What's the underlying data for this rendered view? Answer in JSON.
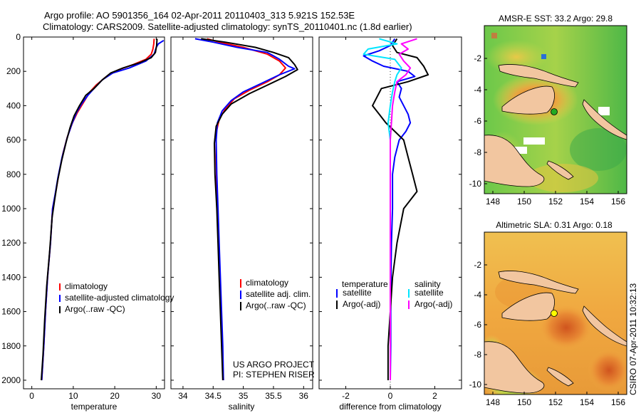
{
  "header": {
    "line1": "Argo profile: AO 5901356_164 02-Apr-2011 20110403_313 5.921S 152.53E",
    "line2": "Climatology: CARS2009. Satellite-adjusted climatology: synTS_20110401.nc (1.8d earlier)"
  },
  "colors": {
    "climatology": "#ff0000",
    "satellite": "#0000ff",
    "argo": "#000000",
    "salinity_satellite": "#00e5ff",
    "salinity_argo": "#ff00ff",
    "land": "#f2c6a0"
  },
  "chart_data": [
    {
      "type": "line",
      "name": "temperature-profile",
      "xlabel": "temperature",
      "ylabel": "",
      "xlim": [
        -2,
        32
      ],
      "ylim": [
        2050,
        0
      ],
      "xticks": [
        0,
        10,
        20,
        30
      ],
      "yticks": [
        0,
        200,
        400,
        600,
        800,
        1000,
        1200,
        1400,
        1600,
        1800,
        2000
      ],
      "series": [
        {
          "name": "climatology",
          "color": "#ff0000",
          "points": [
            [
              29.5,
              10
            ],
            [
              29.4,
              40
            ],
            [
              29.2,
              70
            ],
            [
              28.8,
              100
            ],
            [
              27.5,
              130
            ],
            [
              24.5,
              160
            ],
            [
              21.0,
              190
            ],
            [
              18.0,
              230
            ],
            [
              15.5,
              280
            ],
            [
              14.0,
              320
            ],
            [
              12.5,
              380
            ],
            [
              11.0,
              440
            ],
            [
              9.8,
              500
            ],
            [
              8.6,
              580
            ],
            [
              7.5,
              680
            ],
            [
              6.5,
              800
            ],
            [
              5.8,
              900
            ],
            [
              5.0,
              1000
            ],
            [
              4.5,
              1200
            ],
            [
              3.8,
              1400
            ],
            [
              3.3,
              1600
            ],
            [
              2.9,
              1800
            ],
            [
              2.4,
              2000
            ]
          ]
        },
        {
          "name": "satellite-adjusted climatology",
          "color": "#0000ff",
          "points": [
            [
              31.8,
              20
            ],
            [
              30.5,
              40
            ],
            [
              30.0,
              60
            ],
            [
              29.5,
              100
            ],
            [
              27.5,
              140
            ],
            [
              23.5,
              180
            ],
            [
              19.5,
              210
            ],
            [
              17.0,
              250
            ],
            [
              15.0,
              300
            ],
            [
              13.5,
              340
            ],
            [
              12.0,
              390
            ],
            [
              10.8,
              440
            ],
            [
              9.6,
              510
            ],
            [
              8.5,
              590
            ],
            [
              7.3,
              700
            ],
            [
              6.3,
              820
            ],
            [
              5.6,
              920
            ],
            [
              5.0,
              1000
            ],
            [
              4.5,
              1200
            ],
            [
              3.8,
              1400
            ],
            [
              3.3,
              1600
            ],
            [
              2.9,
              1800
            ],
            [
              2.4,
              2000
            ]
          ]
        },
        {
          "name": "Argo(..raw -QC)",
          "color": "#000000",
          "points": [
            [
              30.2,
              10
            ],
            [
              30.1,
              50
            ],
            [
              29.8,
              90
            ],
            [
              28.8,
              120
            ],
            [
              26.0,
              150
            ],
            [
              22.0,
              180
            ],
            [
              19.0,
              210
            ],
            [
              17.0,
              250
            ],
            [
              15.0,
              300
            ],
            [
              13.0,
              340
            ],
            [
              11.5,
              400
            ],
            [
              10.2,
              460
            ],
            [
              9.2,
              530
            ],
            [
              8.3,
              610
            ],
            [
              7.2,
              720
            ],
            [
              6.2,
              840
            ],
            [
              5.5,
              950
            ],
            [
              4.9,
              1050
            ],
            [
              4.3,
              1250
            ],
            [
              3.6,
              1450
            ],
            [
              3.1,
              1650
            ],
            [
              2.7,
              1850
            ],
            [
              2.3,
              2000
            ]
          ]
        }
      ],
      "legend": {
        "location": "lower-right",
        "entries": [
          "climatology",
          "satellite-adjusted climatology",
          "Argo(..raw -QC)"
        ]
      }
    },
    {
      "type": "line",
      "name": "salinity-profile",
      "xlabel": "salinity",
      "ylabel": "",
      "xlim": [
        33.8,
        36.15
      ],
      "ylim": [
        2050,
        0
      ],
      "xticks": [
        34,
        34.5,
        35,
        35.5,
        36
      ],
      "xtick_labels": [
        "34",
        "34.5",
        "35",
        "35.5",
        "36"
      ],
      "series": [
        {
          "name": "climatology",
          "color": "#ff0000",
          "points": [
            [
              34.4,
              10
            ],
            [
              34.6,
              30
            ],
            [
              35.0,
              60
            ],
            [
              35.4,
              100
            ],
            [
              35.6,
              140
            ],
            [
              35.7,
              180
            ],
            [
              35.6,
              220
            ],
            [
              35.4,
              260
            ],
            [
              35.1,
              310
            ],
            [
              34.85,
              360
            ],
            [
              34.7,
              420
            ],
            [
              34.6,
              480
            ],
            [
              34.55,
              560
            ],
            [
              34.55,
              700
            ],
            [
              34.56,
              900
            ],
            [
              34.58,
              1100
            ],
            [
              34.6,
              1300
            ],
            [
              34.62,
              1500
            ],
            [
              34.64,
              1700
            ],
            [
              34.66,
              1900
            ],
            [
              34.67,
              2000
            ]
          ]
        },
        {
          "name": "satellite adj. clim.",
          "color": "#0000ff",
          "points": [
            [
              34.2,
              10
            ],
            [
              34.5,
              30
            ],
            [
              34.9,
              60
            ],
            [
              35.4,
              90
            ],
            [
              35.6,
              130
            ],
            [
              35.75,
              170
            ],
            [
              35.85,
              185
            ],
            [
              35.6,
              220
            ],
            [
              35.3,
              270
            ],
            [
              35.0,
              320
            ],
            [
              34.8,
              370
            ],
            [
              34.65,
              430
            ],
            [
              34.57,
              500
            ],
            [
              34.55,
              600
            ],
            [
              34.56,
              800
            ],
            [
              34.58,
              1000
            ],
            [
              34.6,
              1200
            ],
            [
              34.62,
              1400
            ],
            [
              34.64,
              1600
            ],
            [
              34.66,
              1800
            ],
            [
              34.67,
              2000
            ]
          ]
        },
        {
          "name": "Argo(..raw -QC)",
          "color": "#000000",
          "points": [
            [
              34.3,
              10
            ],
            [
              34.7,
              30
            ],
            [
              35.2,
              60
            ],
            [
              35.5,
              90
            ],
            [
              35.75,
              120
            ],
            [
              35.85,
              160
            ],
            [
              35.9,
              190
            ],
            [
              35.7,
              230
            ],
            [
              35.4,
              280
            ],
            [
              35.1,
              330
            ],
            [
              34.8,
              390
            ],
            [
              34.65,
              450
            ],
            [
              34.55,
              520
            ],
            [
              34.52,
              620
            ],
            [
              34.53,
              800
            ],
            [
              34.56,
              1000
            ],
            [
              34.58,
              1200
            ],
            [
              34.6,
              1400
            ],
            [
              34.62,
              1600
            ],
            [
              34.64,
              1800
            ],
            [
              34.66,
              2000
            ]
          ]
        }
      ],
      "legend": {
        "location": "lower-right",
        "entries": [
          "climatology",
          "satellite adj. clim.",
          "Argo(..raw -QC)"
        ]
      },
      "annotations": [
        "US ARGO PROJECT",
        "PI: STEPHEN RISER"
      ]
    },
    {
      "type": "line",
      "name": "difference-profile",
      "xlabel": "difference from climatology",
      "ylabel": "",
      "xlim": [
        -3.2,
        3.2
      ],
      "ylim": [
        2050,
        0
      ],
      "xticks": [
        -2,
        0,
        2
      ],
      "series": [
        {
          "name": "temperature satellite",
          "color": "#0000ff",
          "points": [
            [
              0.2,
              10
            ],
            [
              0.0,
              50
            ],
            [
              -0.5,
              80
            ],
            [
              -1.2,
              110
            ],
            [
              -0.8,
              140
            ],
            [
              -0.3,
              170
            ],
            [
              0.8,
              200
            ],
            [
              1.1,
              230
            ],
            [
              0.3,
              260
            ],
            [
              0.5,
              300
            ],
            [
              0.4,
              350
            ],
            [
              0.6,
              400
            ],
            [
              0.8,
              450
            ],
            [
              0.9,
              500
            ],
            [
              0.7,
              550
            ],
            [
              0.4,
              600
            ],
            [
              0.2,
              700
            ],
            [
              0.1,
              800
            ],
            [
              0.1,
              1000
            ],
            [
              0.05,
              1200
            ],
            [
              0.03,
              1400
            ],
            [
              0.02,
              1600
            ],
            [
              0.02,
              1800
            ],
            [
              0.0,
              2000
            ]
          ]
        },
        {
          "name": "temperature Argo(-adj)",
          "color": "#000000",
          "points": [
            [
              0.3,
              10
            ],
            [
              0.1,
              50
            ],
            [
              0.3,
              90
            ],
            [
              1.2,
              120
            ],
            [
              1.5,
              170
            ],
            [
              1.7,
              220
            ],
            [
              0.8,
              260
            ],
            [
              -0.4,
              300
            ],
            [
              -0.8,
              400
            ],
            [
              -0.5,
              450
            ],
            [
              -0.2,
              500
            ],
            [
              0.2,
              550
            ],
            [
              0.6,
              600
            ],
            [
              0.8,
              700
            ],
            [
              1.0,
              800
            ],
            [
              1.2,
              900
            ],
            [
              0.6,
              1000
            ],
            [
              0.3,
              1200
            ],
            [
              0.1,
              1400
            ],
            [
              0.0,
              1600
            ],
            [
              -0.1,
              1800
            ],
            [
              -0.1,
              2000
            ]
          ]
        },
        {
          "name": "salinity satellite",
          "color": "#00e5ff",
          "points": [
            [
              -0.5,
              10
            ],
            [
              0.3,
              40
            ],
            [
              -1.0,
              70
            ],
            [
              -1.2,
              100
            ],
            [
              0.2,
              130
            ],
            [
              0.5,
              180
            ],
            [
              0.3,
              220
            ],
            [
              0.2,
              260
            ],
            [
              0.1,
              320
            ],
            [
              0.0,
              400
            ],
            [
              -0.1,
              500
            ],
            [
              0.0,
              600
            ],
            [
              0.0,
              800
            ],
            [
              0.0,
              1000
            ],
            [
              0.0,
              1200
            ],
            [
              0.0,
              1400
            ],
            [
              0.0,
              1600
            ],
            [
              0.0,
              1800
            ],
            [
              0.0,
              2000
            ]
          ]
        },
        {
          "name": "salinity Argo(-adj)",
          "color": "#ff00ff",
          "points": [
            [
              1.2,
              10
            ],
            [
              0.5,
              40
            ],
            [
              0.8,
              70
            ],
            [
              0.4,
              100
            ],
            [
              0.6,
              140
            ],
            [
              0.9,
              180
            ],
            [
              0.7,
              220
            ],
            [
              0.3,
              260
            ],
            [
              0.2,
              320
            ],
            [
              0.1,
              400
            ],
            [
              0.05,
              500
            ],
            [
              0.0,
              600
            ],
            [
              0.0,
              800
            ],
            [
              0.0,
              1000
            ],
            [
              0.0,
              1200
            ],
            [
              0.0,
              1400
            ],
            [
              0.0,
              1600
            ],
            [
              0.0,
              1800
            ],
            [
              0.0,
              2000
            ]
          ]
        }
      ],
      "legend_left": {
        "title": "temperature",
        "entries": [
          "satellite",
          "Argo(-adj)"
        ]
      },
      "legend_right": {
        "title": "salinity",
        "entries": [
          "satellite",
          "Argo(-adj)"
        ]
      }
    }
  ],
  "maps": [
    {
      "title": "AMSR-E SST: 33.2  Argo: 29.8",
      "xticks": [
        "148",
        "150",
        "152",
        "154",
        "156"
      ],
      "yticks": [
        "-2",
        "-4",
        "-6",
        "-8",
        "-10"
      ],
      "float_marker_color": "#22aa22"
    },
    {
      "title": "Altimetric SLA: 0.31  Argo: 0.18",
      "xticks": [
        "148",
        "150",
        "152",
        "154",
        "156"
      ],
      "yticks": [
        "-2",
        "-4",
        "-6",
        "-8",
        "-10"
      ],
      "float_marker_color": "#ffff00"
    }
  ],
  "footer": {
    "stamp": "CSIRO 07-Apr-2011 10:32:13"
  }
}
